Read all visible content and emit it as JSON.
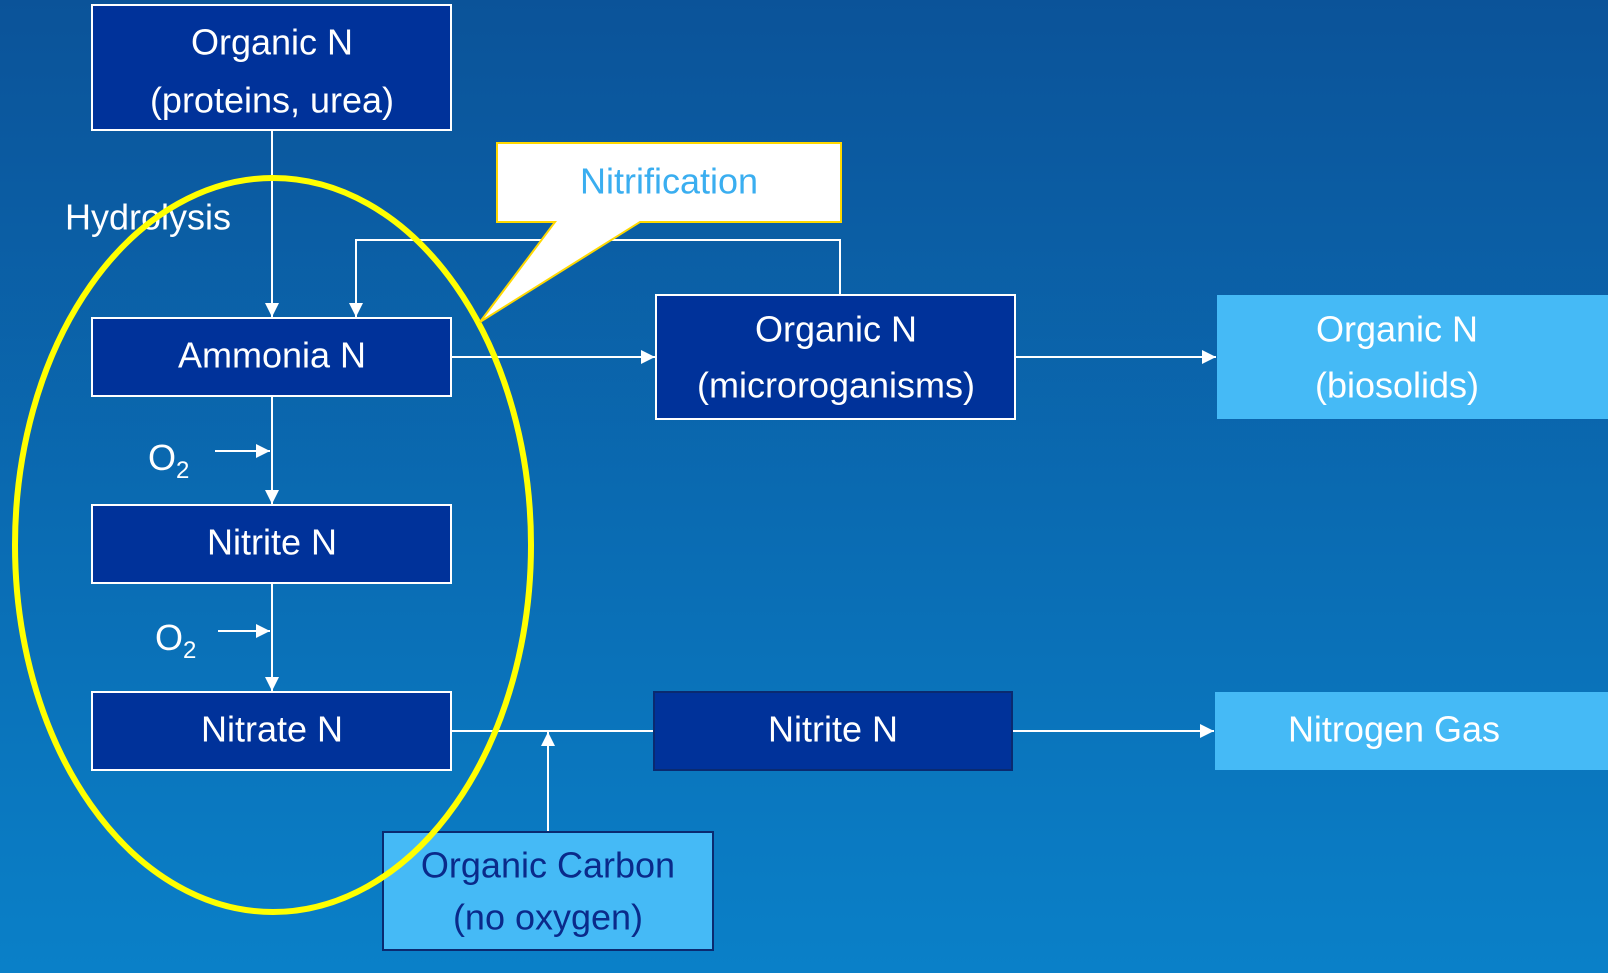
{
  "nodes": [
    {
      "lines": [
        "Organic N",
        "(proteins, urea)"
      ]
    },
    {
      "lines": [
        "Ammonia N"
      ]
    },
    {
      "lines": [
        "Nitrite N"
      ]
    },
    {
      "lines": [
        "Nitrate N"
      ]
    },
    {
      "lines": [
        "Organic N",
        "(microroganisms)"
      ]
    },
    {
      "lines": [
        "Organic N",
        "(biosolids)"
      ]
    },
    {
      "lines": [
        "Nitrite N"
      ]
    },
    {
      "lines": [
        "Nitrogen Gas"
      ]
    },
    {
      "lines": [
        "Organic Carbon",
        "(no oxygen)"
      ]
    }
  ],
  "labels": {
    "hydrolysis": "Hydrolysis",
    "callout": "Nitrification",
    "oxygen": [
      {
        "text": "O",
        "sub": "2"
      },
      {
        "text": "O",
        "sub": "2"
      }
    ]
  }
}
